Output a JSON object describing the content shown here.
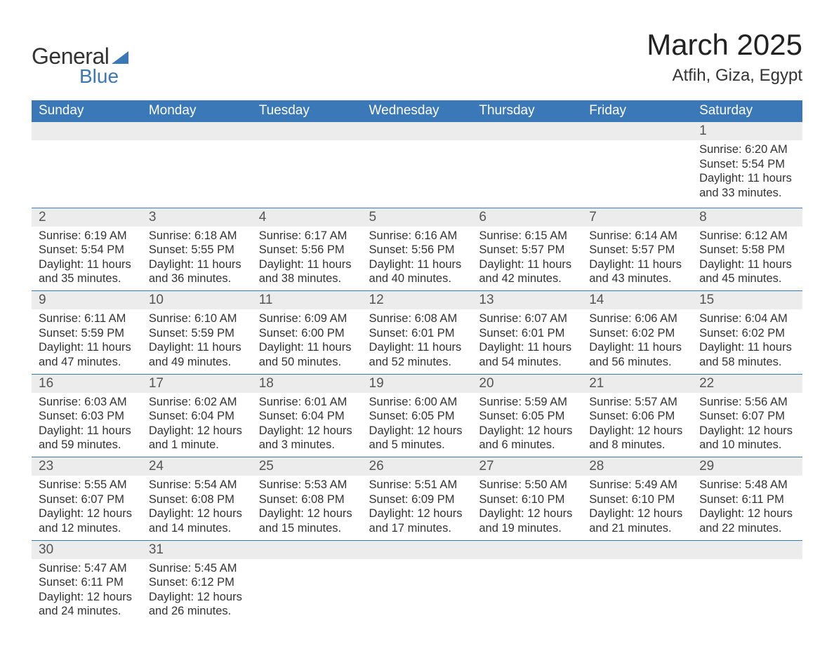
{
  "brand": {
    "word1": "General",
    "word2": "Blue",
    "accent": "#3b78b8"
  },
  "title": "March 2025",
  "location": "Atfih, Giza, Egypt",
  "day_headers": [
    "Sunday",
    "Monday",
    "Tuesday",
    "Wednesday",
    "Thursday",
    "Friday",
    "Saturday"
  ],
  "colors": {
    "header_bg": "#3b78b8",
    "header_text": "#ffffff",
    "daynum_bg": "#ececec",
    "row_border": "#3b78b8",
    "text": "#333333",
    "background": "#ffffff"
  },
  "fonts": {
    "title_size": 42,
    "location_size": 24,
    "header_size": 19,
    "body_size": 16.5
  },
  "weeks": [
    {
      "nums": [
        "",
        "",
        "",
        "",
        "",
        "",
        "1"
      ],
      "details": [
        "",
        "",
        "",
        "",
        "",
        "",
        "Sunrise: 6:20 AM\nSunset: 5:54 PM\nDaylight: 11 hours and 33 minutes."
      ]
    },
    {
      "nums": [
        "2",
        "3",
        "4",
        "5",
        "6",
        "7",
        "8"
      ],
      "details": [
        "Sunrise: 6:19 AM\nSunset: 5:54 PM\nDaylight: 11 hours and 35 minutes.",
        "Sunrise: 6:18 AM\nSunset: 5:55 PM\nDaylight: 11 hours and 36 minutes.",
        "Sunrise: 6:17 AM\nSunset: 5:56 PM\nDaylight: 11 hours and 38 minutes.",
        "Sunrise: 6:16 AM\nSunset: 5:56 PM\nDaylight: 11 hours and 40 minutes.",
        "Sunrise: 6:15 AM\nSunset: 5:57 PM\nDaylight: 11 hours and 42 minutes.",
        "Sunrise: 6:14 AM\nSunset: 5:57 PM\nDaylight: 11 hours and 43 minutes.",
        "Sunrise: 6:12 AM\nSunset: 5:58 PM\nDaylight: 11 hours and 45 minutes."
      ]
    },
    {
      "nums": [
        "9",
        "10",
        "11",
        "12",
        "13",
        "14",
        "15"
      ],
      "details": [
        "Sunrise: 6:11 AM\nSunset: 5:59 PM\nDaylight: 11 hours and 47 minutes.",
        "Sunrise: 6:10 AM\nSunset: 5:59 PM\nDaylight: 11 hours and 49 minutes.",
        "Sunrise: 6:09 AM\nSunset: 6:00 PM\nDaylight: 11 hours and 50 minutes.",
        "Sunrise: 6:08 AM\nSunset: 6:01 PM\nDaylight: 11 hours and 52 minutes.",
        "Sunrise: 6:07 AM\nSunset: 6:01 PM\nDaylight: 11 hours and 54 minutes.",
        "Sunrise: 6:06 AM\nSunset: 6:02 PM\nDaylight: 11 hours and 56 minutes.",
        "Sunrise: 6:04 AM\nSunset: 6:02 PM\nDaylight: 11 hours and 58 minutes."
      ]
    },
    {
      "nums": [
        "16",
        "17",
        "18",
        "19",
        "20",
        "21",
        "22"
      ],
      "details": [
        "Sunrise: 6:03 AM\nSunset: 6:03 PM\nDaylight: 11 hours and 59 minutes.",
        "Sunrise: 6:02 AM\nSunset: 6:04 PM\nDaylight: 12 hours and 1 minute.",
        "Sunrise: 6:01 AM\nSunset: 6:04 PM\nDaylight: 12 hours and 3 minutes.",
        "Sunrise: 6:00 AM\nSunset: 6:05 PM\nDaylight: 12 hours and 5 minutes.",
        "Sunrise: 5:59 AM\nSunset: 6:05 PM\nDaylight: 12 hours and 6 minutes.",
        "Sunrise: 5:57 AM\nSunset: 6:06 PM\nDaylight: 12 hours and 8 minutes.",
        "Sunrise: 5:56 AM\nSunset: 6:07 PM\nDaylight: 12 hours and 10 minutes."
      ]
    },
    {
      "nums": [
        "23",
        "24",
        "25",
        "26",
        "27",
        "28",
        "29"
      ],
      "details": [
        "Sunrise: 5:55 AM\nSunset: 6:07 PM\nDaylight: 12 hours and 12 minutes.",
        "Sunrise: 5:54 AM\nSunset: 6:08 PM\nDaylight: 12 hours and 14 minutes.",
        "Sunrise: 5:53 AM\nSunset: 6:08 PM\nDaylight: 12 hours and 15 minutes.",
        "Sunrise: 5:51 AM\nSunset: 6:09 PM\nDaylight: 12 hours and 17 minutes.",
        "Sunrise: 5:50 AM\nSunset: 6:10 PM\nDaylight: 12 hours and 19 minutes.",
        "Sunrise: 5:49 AM\nSunset: 6:10 PM\nDaylight: 12 hours and 21 minutes.",
        "Sunrise: 5:48 AM\nSunset: 6:11 PM\nDaylight: 12 hours and 22 minutes."
      ]
    },
    {
      "nums": [
        "30",
        "31",
        "",
        "",
        "",
        "",
        ""
      ],
      "details": [
        "Sunrise: 5:47 AM\nSunset: 6:11 PM\nDaylight: 12 hours and 24 minutes.",
        "Sunrise: 5:45 AM\nSunset: 6:12 PM\nDaylight: 12 hours and 26 minutes.",
        "",
        "",
        "",
        "",
        ""
      ]
    }
  ]
}
